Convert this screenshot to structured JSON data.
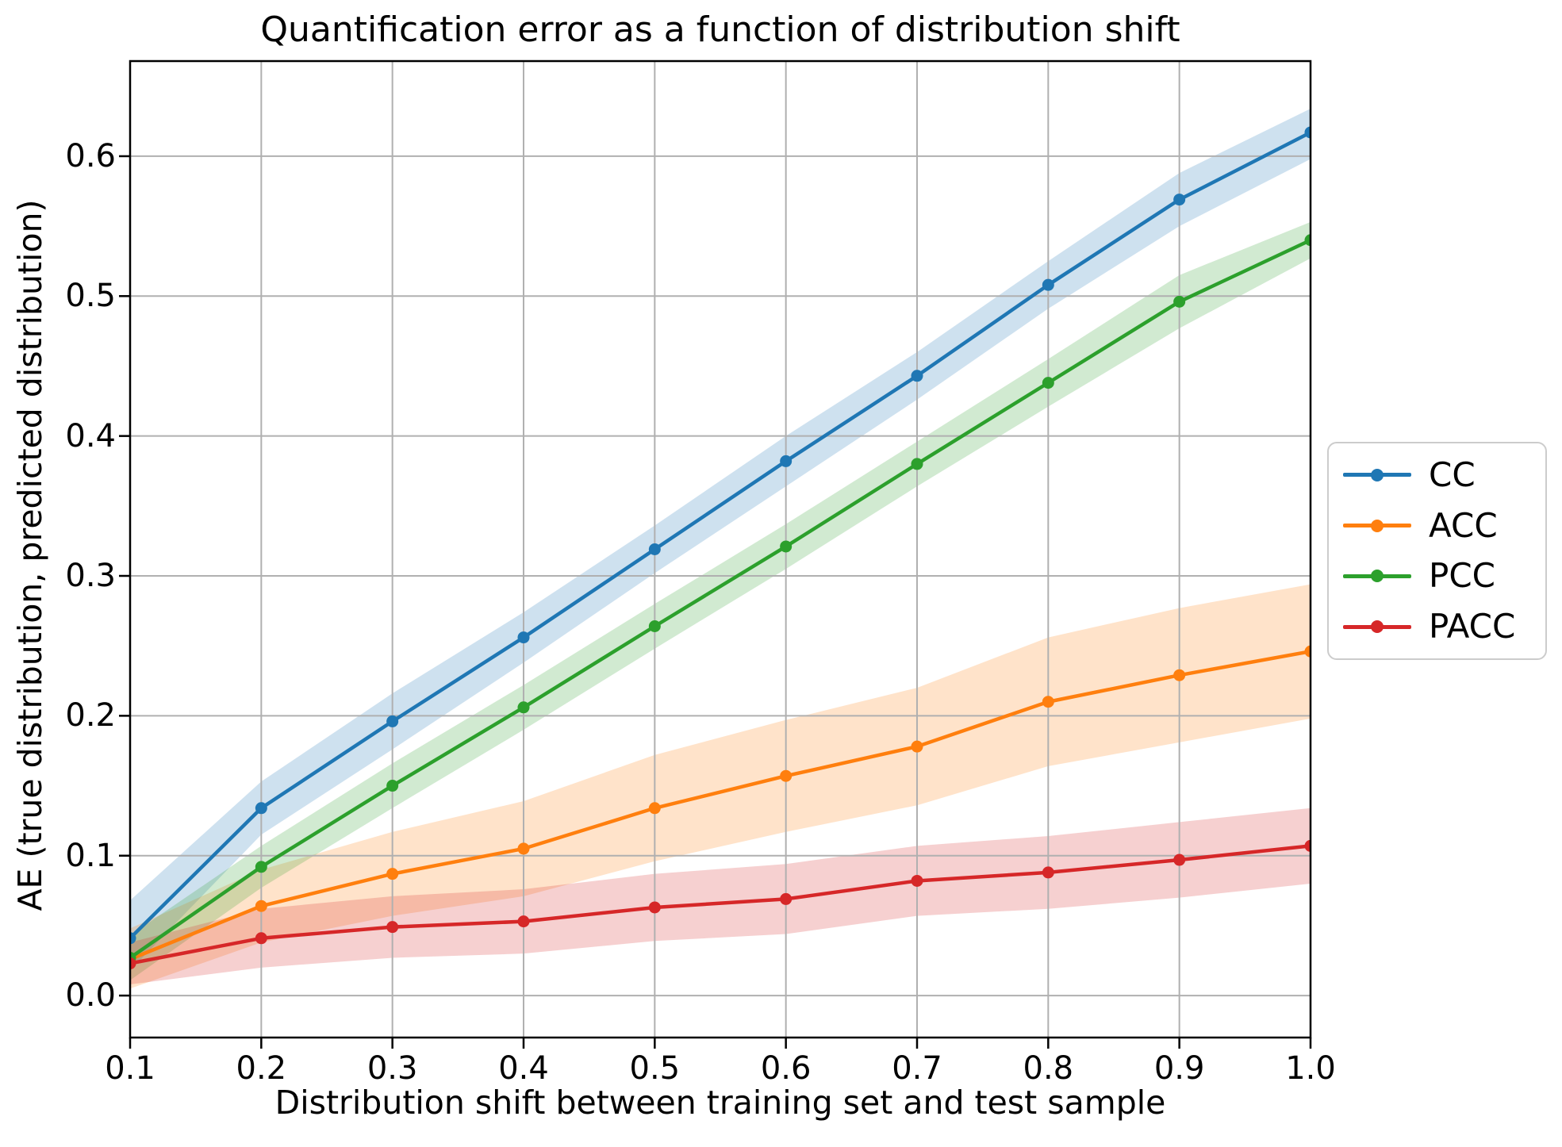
{
  "chart_data": {
    "type": "line",
    "title": "Quantification error as a function of distribution shift",
    "xlabel": "Distribution shift between training set and test sample",
    "ylabel": "AE (true distribution, predicted distribution)",
    "x": [
      0.1,
      0.2,
      0.3,
      0.4,
      0.5,
      0.6,
      0.7,
      0.8,
      0.9,
      1.0
    ],
    "xtick_labels": [
      "0.1",
      "0.2",
      "0.3",
      "0.4",
      "0.5",
      "0.6",
      "0.7",
      "0.8",
      "0.9",
      "1.0"
    ],
    "ytick_values": [
      0.0,
      0.1,
      0.2,
      0.3,
      0.4,
      0.5,
      0.6
    ],
    "ytick_labels": [
      "0.0",
      "0.1",
      "0.2",
      "0.3",
      "0.4",
      "0.5",
      "0.6"
    ],
    "xlim": [
      0.1,
      1.0
    ],
    "ylim": [
      -0.03,
      0.668
    ],
    "grid": true,
    "grid_color": "#b0b0b0",
    "background_color": "#ffffff",
    "spine_color": "#000000",
    "band_alpha": 0.22,
    "legend_position": "outside right, vertically centered",
    "series": [
      {
        "name": "CC",
        "color": "#1f77b4",
        "values": [
          0.041,
          0.134,
          0.196,
          0.256,
          0.319,
          0.382,
          0.443,
          0.508,
          0.569,
          0.617
        ],
        "band_lower": [
          0.018,
          0.115,
          0.176,
          0.238,
          0.302,
          0.364,
          0.426,
          0.491,
          0.55,
          0.598
        ],
        "band_upper": [
          0.068,
          0.153,
          0.216,
          0.274,
          0.336,
          0.4,
          0.46,
          0.525,
          0.588,
          0.634
        ]
      },
      {
        "name": "ACC",
        "color": "#ff7f0e",
        "values": [
          0.026,
          0.064,
          0.087,
          0.105,
          0.134,
          0.157,
          0.178,
          0.21,
          0.229,
          0.246
        ],
        "band_lower": [
          0.005,
          0.038,
          0.057,
          0.071,
          0.096,
          0.117,
          0.136,
          0.164,
          0.181,
          0.198
        ],
        "band_upper": [
          0.048,
          0.09,
          0.117,
          0.139,
          0.172,
          0.197,
          0.22,
          0.256,
          0.277,
          0.294
        ]
      },
      {
        "name": "PCC",
        "color": "#2ca02c",
        "values": [
          0.027,
          0.092,
          0.15,
          0.206,
          0.264,
          0.321,
          0.38,
          0.438,
          0.496,
          0.54
        ],
        "band_lower": [
          0.011,
          0.077,
          0.134,
          0.19,
          0.248,
          0.305,
          0.364,
          0.421,
          0.477,
          0.527
        ],
        "band_upper": [
          0.043,
          0.107,
          0.166,
          0.222,
          0.28,
          0.337,
          0.396,
          0.455,
          0.515,
          0.553
        ]
      },
      {
        "name": "PACC",
        "color": "#d62728",
        "values": [
          0.023,
          0.041,
          0.049,
          0.053,
          0.063,
          0.069,
          0.082,
          0.088,
          0.097,
          0.107
        ],
        "band_lower": [
          0.008,
          0.02,
          0.027,
          0.03,
          0.039,
          0.044,
          0.057,
          0.062,
          0.07,
          0.08
        ],
        "band_upper": [
          0.038,
          0.062,
          0.071,
          0.076,
          0.087,
          0.094,
          0.107,
          0.114,
          0.124,
          0.134
        ]
      }
    ]
  }
}
